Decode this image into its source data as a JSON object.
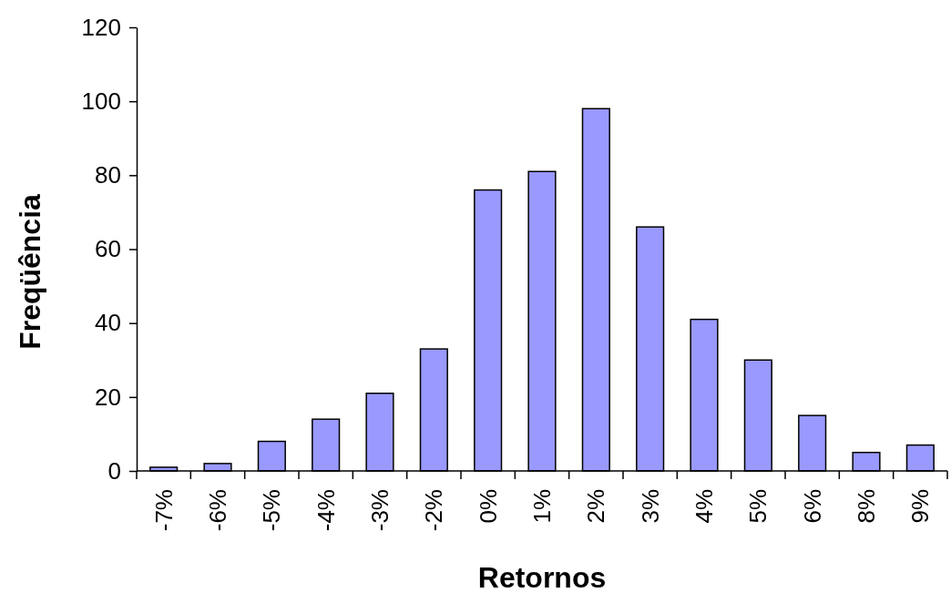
{
  "chart_data": {
    "type": "bar",
    "xlabel": "Retornos",
    "ylabel": "Freqüência",
    "categories": [
      "-7%",
      "-6%",
      "-5%",
      "-4%",
      "-3%",
      "-2%",
      "0%",
      "1%",
      "2%",
      "3%",
      "4%",
      "5%",
      "6%",
      "8%",
      "9%"
    ],
    "values": [
      1,
      2,
      8,
      14,
      21,
      33,
      76,
      81,
      98,
      66,
      41,
      30,
      15,
      5,
      7
    ],
    "color": "#9999ff",
    "ylim": [
      0,
      120
    ],
    "yticks": [
      0,
      20,
      40,
      60,
      80,
      100,
      120
    ],
    "grid": false
  }
}
